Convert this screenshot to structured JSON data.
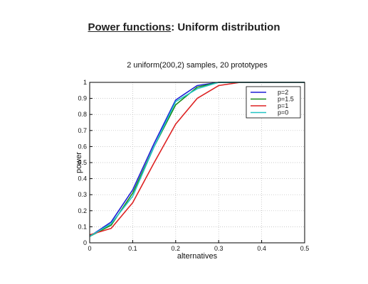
{
  "page": {
    "title_underlined": "Power functions",
    "title_rest": ":  Uniform distribution"
  },
  "chart_data": {
    "type": "line",
    "title": "2 uniform(200,2) samples,    20 prototypes",
    "xlabel": "alternatives",
    "ylabel": "power",
    "xlim": [
      0,
      0.5
    ],
    "ylim": [
      0,
      1
    ],
    "xticks": [
      0,
      0.1,
      0.2,
      0.3,
      0.4,
      0.5
    ],
    "xtick_labels": [
      "0",
      "0.1",
      "0.2",
      "0.3",
      "0.4",
      "0.5"
    ],
    "yticks": [
      0,
      0.1,
      0.2,
      0.3,
      0.4,
      0.5,
      0.6,
      0.7,
      0.8,
      0.9,
      1
    ],
    "ytick_labels": [
      "0",
      "0.1",
      "0.2",
      "0.3",
      "0.4",
      "0.5",
      "0.6",
      "0.7",
      "0.8",
      "0.9",
      "1"
    ],
    "grid": true,
    "legend_position": "top-right",
    "x": [
      0,
      0.05,
      0.1,
      0.15,
      0.2,
      0.25,
      0.3,
      0.35,
      0.4,
      0.45,
      0.5
    ],
    "series": [
      {
        "name": "p=2",
        "color": "#1f1fd6",
        "values": [
          0.04,
          0.13,
          0.33,
          0.62,
          0.89,
          0.98,
          1.0,
          1.0,
          1.0,
          1.0,
          1.0
        ]
      },
      {
        "name": "p=1.5",
        "color": "#1a8a1a",
        "values": [
          0.04,
          0.11,
          0.31,
          0.6,
          0.86,
          0.97,
          1.0,
          1.0,
          1.0,
          1.0,
          1.0
        ]
      },
      {
        "name": "p=1",
        "color": "#dd2222",
        "values": [
          0.05,
          0.09,
          0.25,
          0.5,
          0.74,
          0.9,
          0.98,
          1.0,
          1.0,
          1.0,
          1.0
        ]
      },
      {
        "name": "p=0",
        "color": "#22c4c4",
        "values": [
          0.04,
          0.12,
          0.29,
          0.6,
          0.88,
          0.96,
          1.0,
          1.0,
          1.0,
          1.0,
          1.0
        ]
      }
    ]
  }
}
